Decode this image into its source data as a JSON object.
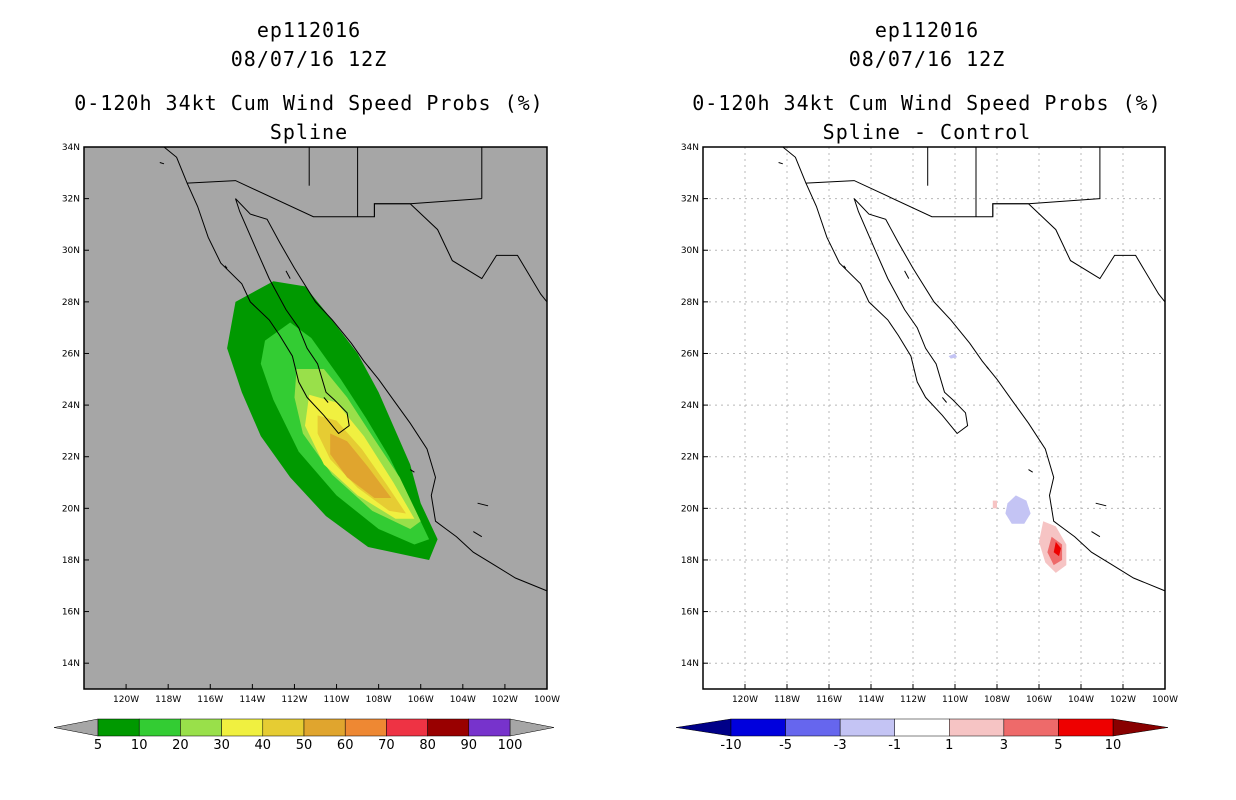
{
  "chart_data": [
    {
      "type": "heatmap",
      "storm_id": "ep112016",
      "datetime": "08/07/16 12Z",
      "title": "0-120h 34kt Cum Wind Speed Probs (%)",
      "subtitle": "Spline",
      "xlim": [
        -122,
        -100
      ],
      "ylim": [
        13,
        34
      ],
      "x_ticks": [
        -120,
        -118,
        -116,
        -114,
        -112,
        -110,
        -108,
        -106,
        -104,
        -102,
        -100
      ],
      "x_tick_labels": [
        "120W",
        "118W",
        "116W",
        "114W",
        "112W",
        "110W",
        "108W",
        "106W",
        "104W",
        "102W",
        "100W"
      ],
      "y_ticks": [
        14,
        16,
        18,
        20,
        22,
        24,
        26,
        28,
        30,
        32,
        34
      ],
      "y_tick_labels": [
        "14N",
        "16N",
        "18N",
        "20N",
        "22N",
        "24N",
        "26N",
        "28N",
        "30N",
        "32N",
        "34N"
      ],
      "grid": false,
      "background_color": "#a6a6a6",
      "colorbar": {
        "levels": [
          "5",
          "10",
          "20",
          "30",
          "40",
          "50",
          "60",
          "70",
          "80",
          "90",
          "100"
        ],
        "colors": [
          "#009900",
          "#33cc33",
          "#99e04a",
          "#f0f040",
          "#e6cc33",
          "#e0a52e",
          "#ee8833",
          "#ee3344",
          "#990000",
          "#7733cc"
        ],
        "under_color": "#a6a6a6",
        "over_color": "#a6a6a6"
      },
      "contour_regions": [
        {
          "level": 5,
          "color": "#009900",
          "polygon": [
            [
              -114.8,
              28
            ],
            [
              -113,
              28.8
            ],
            [
              -111.5,
              28.6
            ],
            [
              -110.5,
              27.6
            ],
            [
              -109,
              26
            ],
            [
              -108,
              24.5
            ],
            [
              -107.2,
              23
            ],
            [
              -106.5,
              21.7
            ],
            [
              -106,
              20.2
            ],
            [
              -105.2,
              18.8
            ],
            [
              -105.6,
              18
            ],
            [
              -106.2,
              18.1
            ],
            [
              -108.5,
              18.5
            ],
            [
              -110.5,
              19.7
            ],
            [
              -112.2,
              21.2
            ],
            [
              -113.6,
              22.8
            ],
            [
              -114.5,
              24.5
            ],
            [
              -115.2,
              26.2
            ]
          ]
        },
        {
          "level": 10,
          "color": "#33cc33",
          "polygon": [
            [
              -113.4,
              26.5
            ],
            [
              -112.2,
              27.2
            ],
            [
              -111.2,
              26.6
            ],
            [
              -109.8,
              25
            ],
            [
              -108.6,
              23.5
            ],
            [
              -107.5,
              22
            ],
            [
              -106.3,
              20
            ],
            [
              -105.6,
              18.8
            ],
            [
              -106.3,
              18.6
            ],
            [
              -108,
              19.2
            ],
            [
              -110,
              20.5
            ],
            [
              -111.8,
              22.2
            ],
            [
              -113,
              24.2
            ],
            [
              -113.6,
              25.6
            ]
          ]
        },
        {
          "level": 20,
          "color": "#99e04a",
          "polygon": [
            [
              -111.9,
              25.4
            ],
            [
              -110.6,
              25.4
            ],
            [
              -109.5,
              24.3
            ],
            [
              -108.3,
              22.8
            ],
            [
              -107,
              21.2
            ],
            [
              -106,
              19.5
            ],
            [
              -106.5,
              19.2
            ],
            [
              -108.3,
              19.9
            ],
            [
              -110.2,
              21.3
            ],
            [
              -111.6,
              22.9
            ],
            [
              -112,
              24.3
            ]
          ]
        },
        {
          "level": 30,
          "color": "#f0f040",
          "polygon": [
            [
              -111.3,
              24.4
            ],
            [
              -110,
              24.1
            ],
            [
              -108.7,
              22.8
            ],
            [
              -107.3,
              21
            ],
            [
              -106.3,
              19.6
            ],
            [
              -107.2,
              19.6
            ],
            [
              -109,
              20.5
            ],
            [
              -110.6,
              21.7
            ],
            [
              -111.5,
              23.2
            ]
          ]
        },
        {
          "level": 40,
          "color": "#e6cc33",
          "polygon": [
            [
              -110.9,
              23.6
            ],
            [
              -110,
              23.4
            ],
            [
              -108.8,
              22.3
            ],
            [
              -107.6,
              20.9
            ],
            [
              -106.7,
              19.8
            ],
            [
              -107.5,
              19.9
            ],
            [
              -109,
              20.8
            ],
            [
              -110.3,
              21.9
            ],
            [
              -110.9,
              22.9
            ]
          ]
        },
        {
          "level": 50,
          "color": "#e0a52e",
          "polygon": [
            [
              -110.3,
              22.9
            ],
            [
              -109.5,
              22.6
            ],
            [
              -108.5,
              21.6
            ],
            [
              -107.4,
              20.4
            ],
            [
              -108.2,
              20.4
            ],
            [
              -109.5,
              21.2
            ],
            [
              -110.3,
              22.1
            ]
          ]
        }
      ]
    },
    {
      "type": "heatmap",
      "storm_id": "ep112016",
      "datetime": "08/07/16 12Z",
      "title": "0-120h 34kt Cum Wind Speed Probs (%)",
      "subtitle": "Spline - Control",
      "xlim": [
        -122,
        -100
      ],
      "ylim": [
        13,
        34
      ],
      "x_ticks": [
        -120,
        -118,
        -116,
        -114,
        -112,
        -110,
        -108,
        -106,
        -104,
        -102,
        -100
      ],
      "x_tick_labels": [
        "120W",
        "118W",
        "116W",
        "114W",
        "112W",
        "110W",
        "108W",
        "106W",
        "104W",
        "102W",
        "100W"
      ],
      "y_ticks": [
        14,
        16,
        18,
        20,
        22,
        24,
        26,
        28,
        30,
        32,
        34
      ],
      "y_tick_labels": [
        "14N",
        "16N",
        "18N",
        "20N",
        "22N",
        "24N",
        "26N",
        "28N",
        "30N",
        "32N",
        "34N"
      ],
      "grid": true,
      "background_color": "#ffffff",
      "colorbar": {
        "levels": [
          "-10",
          "-5",
          "-3",
          "-1",
          "1",
          "3",
          "5",
          "10"
        ],
        "colors": [
          "#0000dd",
          "#6666ee",
          "#c4c4f4",
          "#ffffff",
          "#f6c4c4",
          "#ee6a6a",
          "#ee0000"
        ],
        "under_color": "#000088",
        "over_color": "#880000"
      },
      "contour_regions": [
        {
          "level": -1,
          "color": "#c4c4f4",
          "polygon": [
            [
              -107.5,
              20.2
            ],
            [
              -107.1,
              20.5
            ],
            [
              -106.6,
              20.3
            ],
            [
              -106.4,
              19.8
            ],
            [
              -106.7,
              19.4
            ],
            [
              -107.3,
              19.4
            ],
            [
              -107.6,
              19.8
            ]
          ]
        },
        {
          "level": -1,
          "color": "#c4c4f4",
          "polygon": [
            [
              -110.3,
              25.9
            ],
            [
              -110,
              26
            ],
            [
              -109.9,
              25.85
            ],
            [
              -110.2,
              25.8
            ]
          ]
        },
        {
          "level": 1,
          "color": "#f6c4c4",
          "polygon": [
            [
              -105.8,
              19.5
            ],
            [
              -105.2,
              19.3
            ],
            [
              -104.7,
              18.6
            ],
            [
              -104.7,
              17.8
            ],
            [
              -105.2,
              17.5
            ],
            [
              -105.7,
              17.9
            ],
            [
              -106,
              18.7
            ]
          ]
        },
        {
          "level": 1,
          "color": "#f6c4c4",
          "polygon": [
            [
              -108.2,
              20.3
            ],
            [
              -108,
              20.3
            ],
            [
              -108,
              20
            ],
            [
              -108.2,
              20
            ]
          ]
        },
        {
          "level": 3,
          "color": "#ee6a6a",
          "polygon": [
            [
              -105.4,
              18.9
            ],
            [
              -104.9,
              18.6
            ],
            [
              -104.9,
              18
            ],
            [
              -105.3,
              17.8
            ],
            [
              -105.6,
              18.3
            ]
          ]
        },
        {
          "level": 5,
          "color": "#ee0000",
          "polygon": [
            [
              -105.2,
              18.7
            ],
            [
              -104.95,
              18.45
            ],
            [
              -105.05,
              18.15
            ],
            [
              -105.3,
              18.3
            ]
          ]
        }
      ]
    }
  ]
}
